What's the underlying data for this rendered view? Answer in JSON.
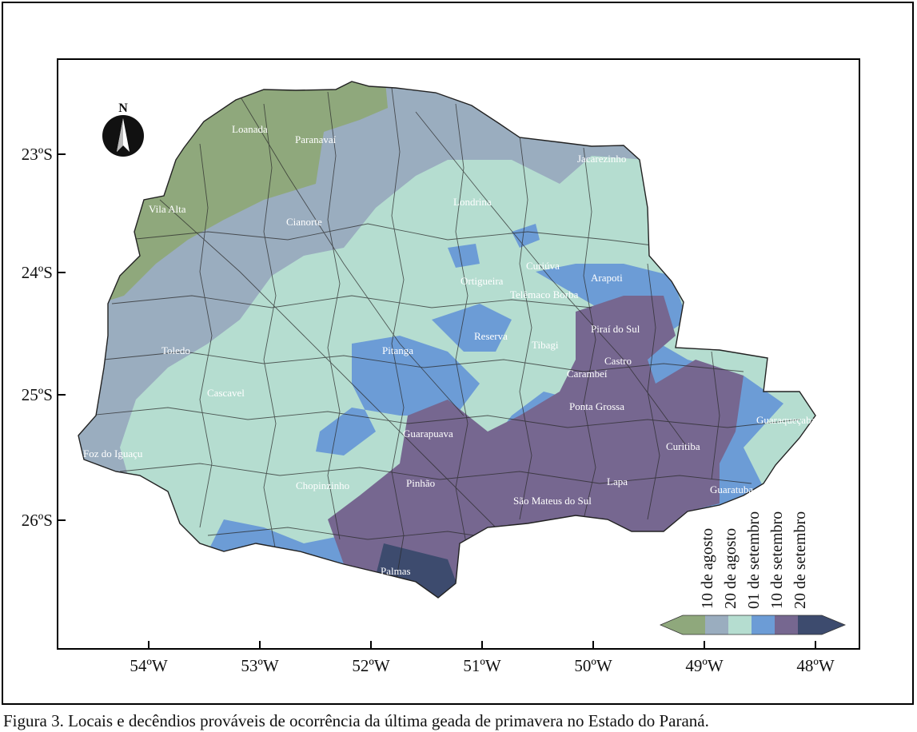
{
  "map": {
    "y_ticks": [
      "23ºS",
      "24ºS",
      "25ºS",
      "26ºS"
    ],
    "x_ticks": [
      "54ºW",
      "53ºW",
      "52ºW",
      "51ºW",
      "50ºW",
      "49ºW",
      "48ºW"
    ],
    "north_label": "N",
    "cities": [
      "Loanada",
      "Paranavaí",
      "Jacarezinho",
      "Vila Alta",
      "Cianorte",
      "Londrina",
      "Curiúva",
      "Ortigueira",
      "Arapoti",
      "Telêmaco Borba",
      "Piraí do Sul",
      "Toledo",
      "Reserva",
      "Tibagi",
      "Pitanga",
      "Castro",
      "Carambeí",
      "Cascavel",
      "Ponta Grossa",
      "Guaraqueçaba",
      "Guarapuava",
      "Curitiba",
      "Foz do Iguaçu",
      "Chopinzinho",
      "Pinhão",
      "Lapa",
      "Guaratuba",
      "São Mateus do Sul",
      "Palmas"
    ]
  },
  "legend": {
    "items": [
      {
        "label": "10 de agosto",
        "color": "#8fa87c"
      },
      {
        "label": "20 de agosto",
        "color": "#9aadbf"
      },
      {
        "label": "01 de setembro",
        "color": "#b5ddd0"
      },
      {
        "label": "10 de setembro",
        "color": "#6c9cd6"
      },
      {
        "label": "20 de setembro",
        "color": "#766790"
      },
      {
        "label": "",
        "color": "#3d4b6e"
      }
    ]
  },
  "caption": "Figura 3. Locais e decêndios prováveis de ocorrência da última geada de primavera no Estado do Paraná."
}
